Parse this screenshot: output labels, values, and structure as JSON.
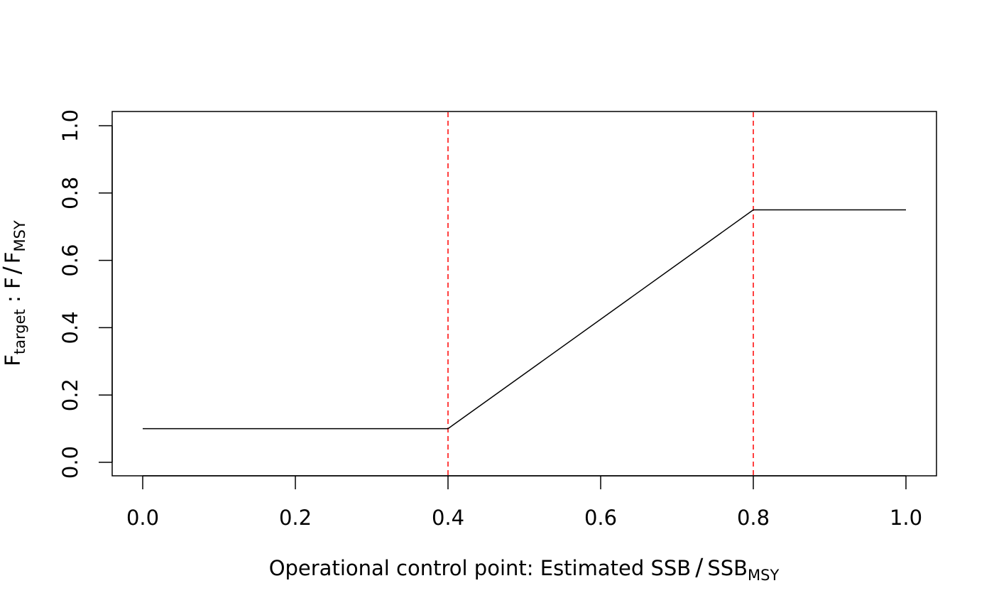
{
  "chart_data": {
    "type": "line",
    "title": "",
    "xlabel": {
      "main": "Operational control point: Estimated SSB",
      "sep": "/",
      "num": "SSB",
      "sub": "MSY"
    },
    "ylabel": {
      "f1": "F",
      "sub1": "target",
      "colon": " :  ",
      "f2": "F",
      "sep": "/",
      "f3": "F",
      "sub3": "MSY"
    },
    "xlim": [
      0.0,
      1.0
    ],
    "ylim": [
      0.0,
      1.0
    ],
    "xticks": [
      "0.0",
      "0.2",
      "0.4",
      "0.6",
      "0.8",
      "1.0"
    ],
    "yticks": [
      "0.0",
      "0.2",
      "0.4",
      "0.6",
      "0.8",
      "1.0"
    ],
    "grid": false,
    "series": [
      {
        "x": [
          0.0,
          0.4,
          0.8,
          1.0
        ],
        "y": [
          0.1,
          0.1,
          0.75,
          0.75
        ],
        "color": "#000000"
      }
    ],
    "reference_lines": [
      {
        "axis": "x",
        "value": 0.4,
        "color": "#ff0000",
        "style": "dashed"
      },
      {
        "axis": "x",
        "value": 0.8,
        "color": "#ff0000",
        "style": "dashed"
      }
    ]
  }
}
